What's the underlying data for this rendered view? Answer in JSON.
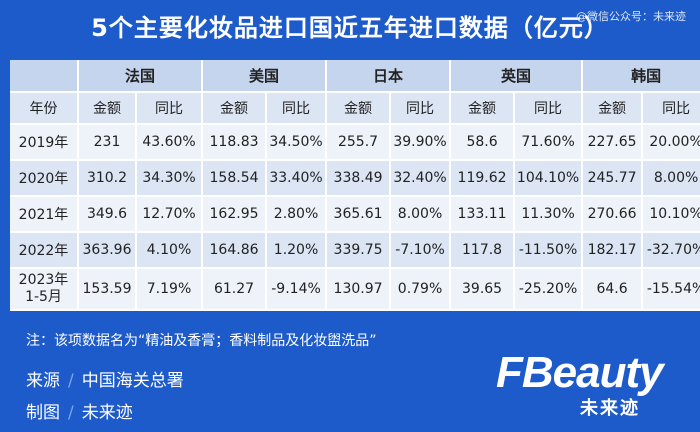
{
  "header": {
    "title": "5个主要化妆品进口国近五年进口数据（亿元）",
    "watermark": "@微信公众号：未来迹"
  },
  "table": {
    "year_header": "年份",
    "countries": [
      "法国",
      "美国",
      "日本",
      "英国",
      "韩国"
    ],
    "amount_label": "金额",
    "yoy_label": "同比",
    "rows": [
      {
        "year": "2019年",
        "values": [
          "231",
          "43.60%",
          "118.83",
          "34.50%",
          "255.7",
          "39.90%",
          "58.6",
          "71.60%",
          "227.65",
          "20.00%"
        ]
      },
      {
        "year": "2020年",
        "values": [
          "310.2",
          "34.30%",
          "158.54",
          "33.40%",
          "338.49",
          "32.40%",
          "119.62",
          "104.10%",
          "245.77",
          "8.00%"
        ]
      },
      {
        "year": "2021年",
        "values": [
          "349.6",
          "12.70%",
          "162.95",
          "2.80%",
          "365.61",
          "8.00%",
          "133.11",
          "11.30%",
          "270.66",
          "10.10%"
        ]
      },
      {
        "year": "2022年",
        "values": [
          "363.96",
          "4.10%",
          "164.86",
          "1.20%",
          "339.75",
          "-7.10%",
          "117.8",
          "-11.50%",
          "182.17",
          "-32.70%"
        ]
      },
      {
        "year_line1": "2023年",
        "year_line2": "1-5月",
        "values": [
          "153.59",
          "7.19%",
          "61.27",
          "-9.14%",
          "130.97",
          "0.79%",
          "39.65",
          "-25.20%",
          "64.6",
          "-15.54%"
        ]
      }
    ]
  },
  "footer": {
    "note": "注：该项数据名为“精油及香膏；香料制品及化妆盥洗品”",
    "source_label": "来源",
    "source_value": "中国海关总署",
    "made_label": "制图",
    "made_value": "未来迹",
    "slash": "/",
    "logo_word": "FBeauty",
    "logo_sub": "未来迹"
  },
  "colors": {
    "background": "#1c5bc9",
    "header_row": "#c5d5ee",
    "row_dark": "#dbe5f4",
    "row_light": "#eef3fa"
  }
}
